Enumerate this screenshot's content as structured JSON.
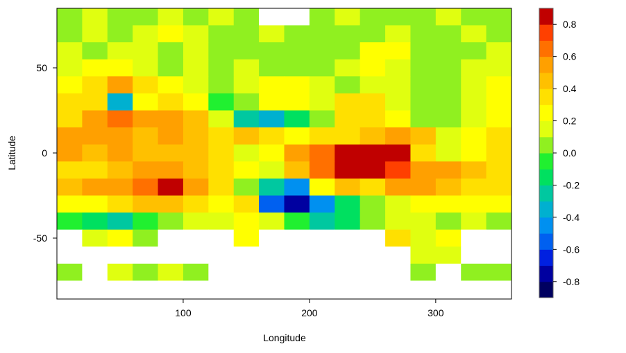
{
  "chart_data": {
    "type": "heatmap",
    "title": "",
    "xlabel": "Longitude",
    "ylabel": "Latitude",
    "xlim": [
      0,
      360
    ],
    "ylim": [
      -85,
      85
    ],
    "x_ticks": [
      100,
      200,
      300
    ],
    "x_tick_labels": [
      "100",
      "200",
      "300"
    ],
    "y_ticks": [
      50,
      0,
      -50
    ],
    "y_tick_labels": [
      "50",
      "0",
      "-50"
    ],
    "grid_lon_centers": [
      10,
      30,
      50,
      70,
      90,
      110,
      130,
      150,
      170,
      190,
      210,
      230,
      250,
      270,
      290,
      310,
      330,
      350
    ],
    "grid_lat_centers": [
      80,
      70,
      60,
      50,
      40,
      30,
      20,
      10,
      0,
      -10,
      -20,
      -30,
      -40,
      -50,
      -60,
      -70,
      -80
    ],
    "cell_size_deg": [
      20,
      10
    ],
    "values": [
      [
        0.05,
        0.1,
        0.05,
        0.05,
        0.1,
        0.05,
        0.1,
        0.05,
        null,
        null,
        0.05,
        0.1,
        0,
        0.05,
        0.05,
        0.1,
        0,
        0.05
      ],
      [
        0.05,
        0.1,
        0.05,
        0.1,
        0.2,
        0.1,
        0,
        0.05,
        0.1,
        0,
        0,
        0.05,
        0.05,
        0.1,
        0,
        0.05,
        0.1,
        0.05
      ],
      [
        0.1,
        0.05,
        0.1,
        0.1,
        0.05,
        0.1,
        0.05,
        0,
        0.05,
        0,
        0,
        0.05,
        0.2,
        0.2,
        0.05,
        0,
        0.05,
        0.1
      ],
      [
        0.1,
        0.2,
        0.25,
        0.1,
        0.05,
        0.1,
        0.05,
        0.1,
        0.05,
        0,
        0,
        0.1,
        0.2,
        0.1,
        0.05,
        0.05,
        0.1,
        0.1
      ],
      [
        0.2,
        0.3,
        0.5,
        0.3,
        0.2,
        0.15,
        0.05,
        0.1,
        0.2,
        0.25,
        0.1,
        0.05,
        0.15,
        0.1,
        0.05,
        0.05,
        0.1,
        0.2
      ],
      [
        0.3,
        0.3,
        -0.4,
        0.2,
        0.3,
        0.2,
        -0.1,
        0.05,
        0.2,
        0.2,
        0.1,
        0.3,
        0.3,
        0.1,
        0.05,
        0,
        0.1,
        0.2
      ],
      [
        0.3,
        0.5,
        0.6,
        0.5,
        0.5,
        0.4,
        0.1,
        -0.3,
        -0.4,
        -0.2,
        0.05,
        0.3,
        0.3,
        0.2,
        0.05,
        0,
        0.1,
        0.2
      ],
      [
        0.5,
        0.5,
        0.5,
        0.4,
        0.5,
        0.4,
        0.3,
        0.4,
        0.3,
        0.2,
        0.3,
        0.3,
        0.4,
        0.5,
        0.4,
        0.1,
        0.2,
        0.3
      ],
      [
        0.5,
        0.4,
        0.5,
        0.4,
        0.4,
        0.4,
        0.3,
        0.1,
        0.2,
        0.5,
        0.6,
        0.9,
        0.9,
        0.9,
        0.3,
        0.1,
        0.2,
        0.3
      ],
      [
        0.3,
        0.3,
        0.4,
        0.5,
        0.5,
        0.4,
        0.3,
        0.2,
        0.1,
        0.4,
        0.6,
        0.8,
        0.8,
        0.7,
        0.5,
        0.5,
        0.4,
        0.3
      ],
      [
        0.4,
        0.5,
        0.5,
        0.6,
        0.8,
        0.5,
        0.3,
        0.0,
        -0.3,
        -0.5,
        0.2,
        0.4,
        0.3,
        0.5,
        0.5,
        0.4,
        0.3,
        0.3
      ],
      [
        0.2,
        0.2,
        0.3,
        0.4,
        0.4,
        0.3,
        0.2,
        0.3,
        -0.6,
        -0.8,
        -0.5,
        -0.2,
        0,
        0.1,
        0.2,
        0.2,
        0.2,
        0.2
      ],
      [
        -0.1,
        -0.2,
        -0.3,
        -0.1,
        0.0,
        0.1,
        0.1,
        0.2,
        0.1,
        -0.1,
        -0.3,
        -0.2,
        0,
        0.1,
        0.1,
        0.05,
        0.1,
        0.05
      ],
      [
        null,
        0.1,
        0.2,
        0.05,
        null,
        null,
        null,
        0.2,
        null,
        null,
        null,
        null,
        null,
        0.3,
        0.1,
        0.2,
        null,
        null
      ],
      [
        null,
        null,
        null,
        null,
        null,
        null,
        null,
        null,
        null,
        null,
        null,
        null,
        null,
        null,
        0.1,
        0.1,
        null,
        null
      ],
      [
        0.05,
        null,
        0.1,
        0.05,
        0.1,
        0.0,
        null,
        null,
        null,
        null,
        null,
        null,
        null,
        null,
        0.05,
        null,
        0.05,
        0.05
      ],
      [
        null,
        null,
        null,
        null,
        null,
        null,
        null,
        null,
        null,
        null,
        null,
        null,
        null,
        null,
        null,
        null,
        null,
        null
      ]
    ],
    "colorbar": {
      "range": [
        -0.9,
        0.9
      ],
      "breaks_step": 0.1,
      "colors_low_to_high": [
        "#000060",
        "#0000a0",
        "#0020e0",
        "#0060f0",
        "#0090f0",
        "#00b0d0",
        "#00c8a0",
        "#00e060",
        "#20f030",
        "#90f020",
        "#e0ff10",
        "#ffff00",
        "#ffe000",
        "#ffc000",
        "#ffa000",
        "#ff7000",
        "#ff4000",
        "#c00000"
      ],
      "ticks": [
        0.8,
        0.6,
        0.4,
        0.2,
        0.0,
        -0.2,
        -0.4,
        -0.6,
        -0.8
      ],
      "tick_labels": [
        "0.8",
        "0.6",
        "0.4",
        "0.2",
        "0.0",
        "-0.2",
        "-0.4",
        "-0.6",
        "-0.8"
      ]
    },
    "missing_color": "#ffffff"
  }
}
